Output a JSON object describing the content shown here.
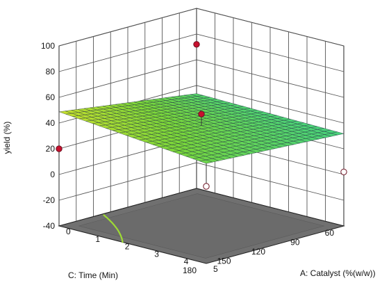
{
  "chart_data": {
    "type": "surface3d",
    "title": "",
    "zlabel": "yield (%)",
    "xlabel": "A: Catalyst (%(w/w))",
    "ylabel": "C: Time (Min)",
    "zlim": [
      -40,
      100
    ],
    "z_ticks": [
      "100",
      "80",
      "60",
      "40",
      "20",
      "0",
      "-20",
      "-40"
    ],
    "x_ticks": [
      "0",
      "1",
      "2",
      "3",
      "4",
      "5"
    ],
    "y_ticks": [
      "60",
      "90",
      "120",
      "150",
      "180"
    ],
    "xlim": [
      0,
      5
    ],
    "ylim": [
      60,
      180
    ],
    "surface_corners": {
      "catalyst_0_time_180": 18,
      "catalyst_0_time_60": 56,
      "catalyst_5_time_180": 60,
      "catalyst_5_time_60": 1
    },
    "saddle_point": {
      "catalyst": 2.5,
      "time": 120,
      "yield": 38
    },
    "design_points": [
      {
        "catalyst": 0,
        "time": 180,
        "yield": 20,
        "above_surface": true
      },
      {
        "catalyst": 0,
        "time": 60,
        "yield": 72,
        "above_surface": true
      },
      {
        "catalyst": 2.5,
        "time": 120,
        "yield": 47,
        "above_surface": true
      },
      {
        "catalyst": 5,
        "time": 180,
        "yield": 20,
        "above_surface": false
      },
      {
        "catalyst": 5,
        "time": 60,
        "yield": 2,
        "above_surface": false
      }
    ],
    "colormap": [
      "#1a2a8a",
      "#1f5fd0",
      "#27b6e6",
      "#3ed28a",
      "#7ad63a",
      "#d4e22a",
      "#f2e620"
    ],
    "grid": true
  }
}
